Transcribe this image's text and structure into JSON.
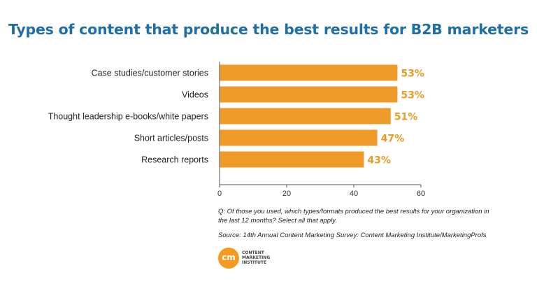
{
  "chart_data": {
    "type": "bar",
    "orientation": "horizontal",
    "title": "Types of content that produce the best results for B2B marketers",
    "categories": [
      "Case studies/customer stories",
      "Videos",
      "Thought leadership e-books/white papers",
      "Short articles/posts",
      "Research reports"
    ],
    "values": [
      53,
      53,
      51,
      47,
      43
    ],
    "value_labels": [
      "53%",
      "53%",
      "51%",
      "47%",
      "43%"
    ],
    "xlim": [
      0,
      60
    ],
    "xticks": [
      "0",
      "20",
      "40",
      "60"
    ],
    "grid": false,
    "bar_color": "#ee9b2a",
    "label_color": "#ec9a22"
  },
  "question": "Q: Of those you used, which types/formats produced the best results for your organization in the last 12 months? Select all that apply.",
  "source": "Source: 14th Annual Content Marketing Survey: Content Marketing Institute/MarketingProfs",
  "logo": {
    "initials": "cm",
    "line1": "CONTENT",
    "line2": "MARKETING",
    "line3": "INSTITUTE"
  },
  "colors": {
    "title": "#1f6fa6",
    "logo": "#f39a1f"
  }
}
